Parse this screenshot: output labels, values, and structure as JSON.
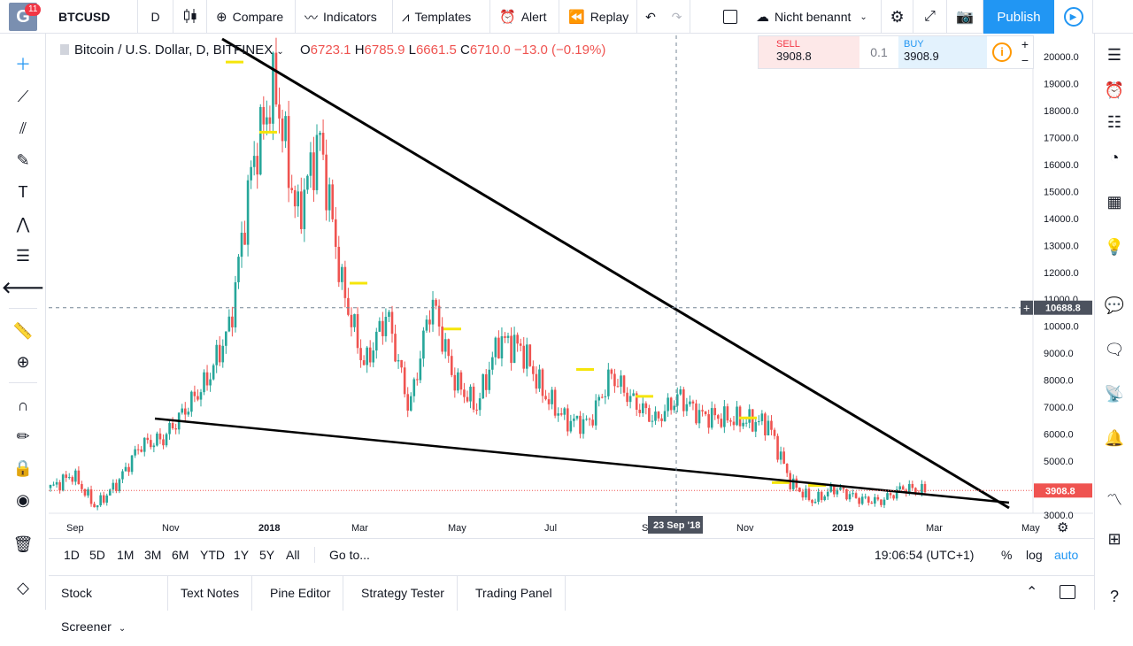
{
  "header": {
    "logo_letter": "G",
    "logo_badge": "11",
    "symbol": "BTCUSD",
    "interval": "D",
    "compare": "Compare",
    "indicators": "Indicators",
    "templates": "Templates",
    "alert": "Alert",
    "replay": "Replay",
    "layout_name": "Nicht benannt",
    "publish": "Publish"
  },
  "legend": {
    "title": "Bitcoin / U.S. Dollar, D, BITFINEX",
    "o_label": "O",
    "o": "6723.1",
    "h_label": "H",
    "h": "6785.9",
    "l_label": "L",
    "l": "6661.5",
    "c_label": "C",
    "c": "6710.0",
    "change": "−13.0 (−0.19%)"
  },
  "trade_panel": {
    "sell_label": "SELL",
    "sell_price": "3908.8",
    "quantity": "0.1",
    "buy_label": "BUY",
    "buy_price": "3908.9"
  },
  "range_bar": {
    "ranges": [
      "1D",
      "5D",
      "1M",
      "3M",
      "6M",
      "YTD",
      "1Y",
      "5Y",
      "All"
    ],
    "goto": "Go to...",
    "time": "19:06:54 (UTC+1)",
    "percent": "%",
    "log": "log",
    "auto": "auto"
  },
  "bottom_tabs": [
    "Stock Screener",
    "Text Notes",
    "Pine Editor",
    "Strategy Tester",
    "Trading Panel"
  ],
  "colors": {
    "up": "#26a69a",
    "down": "#ef5350",
    "accent": "#2196f3",
    "marker": "#f5e50a"
  },
  "chart_data": {
    "type": "candlestick",
    "x_ticks": [
      "Sep",
      "Nov",
      "2018",
      "Mar",
      "May",
      "Jul",
      "Sep",
      "Nov",
      "2019",
      "Mar",
      "May"
    ],
    "y_ticks": [
      "20000.0",
      "19000.0",
      "18000.0",
      "17000.0",
      "16000.0",
      "15000.0",
      "14000.0",
      "13000.0",
      "12000.0",
      "11000.0",
      "10000.0",
      "9000.0",
      "8000.0",
      "7000.0",
      "6000.0",
      "5000.0",
      "4000.0",
      "3000.0"
    ],
    "ylim": [
      2000,
      21000
    ],
    "crosshair_price": "10688.8",
    "crosshair_date": "23 Sep '18",
    "last_price": "3908.8",
    "close_series": [
      4000,
      4500,
      3300,
      4200,
      5600,
      5800,
      6900,
      8000,
      10000,
      16000,
      19000,
      14000,
      17000,
      11500,
      8500,
      10500,
      6900,
      11000,
      8000,
      7000,
      9500,
      9200,
      7500,
      6500,
      6400,
      8200,
      7200,
      6500,
      7400,
      6700,
      6600,
      6500,
      6400,
      4200,
      3500,
      4000,
      3600,
      3500,
      4000,
      3900
    ],
    "swing_highs": [
      19800,
      17200,
      11600,
      9900,
      8400,
      7400,
      6600,
      4200,
      4100
    ],
    "trendline_upper": {
      "from": [
        "Dec 2017",
        20500
      ],
      "to": [
        "Apr 2019",
        2300
      ]
    },
    "trendline_lower": {
      "from": [
        "Nov 2017",
        5800
      ],
      "to": [
        "Apr 2019",
        2400
      ]
    }
  }
}
